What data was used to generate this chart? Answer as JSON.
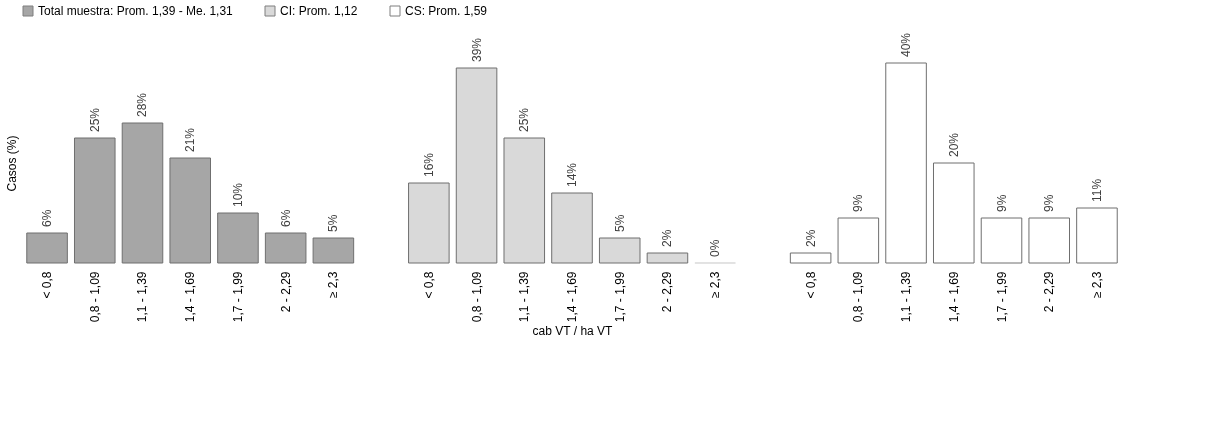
{
  "chart_data": {
    "type": "bar",
    "categories": [
      "< 0,8",
      "0,8 - 1,09",
      "1,1 - 1,39",
      "1,4 - 1,69",
      "1,7 - 1,99",
      "2 - 2,29",
      "≥ 2,3",
      null,
      "< 0,8",
      "0,8 - 1,09",
      "1,1 - 1,39",
      "1,4 - 1,69",
      "1,7 - 1,99",
      "2 - 2,29",
      "≥ 2,3",
      null,
      "< 0,8",
      "0,8 - 1,09",
      "1,1 - 1,39",
      "1,4 - 1,69",
      "1,7 - 1,99",
      "2 - 2,29",
      "≥ 2,3"
    ],
    "series": [
      {
        "name": "Total muestra: Prom. 1,39 - Me. 1,31",
        "color": "#a6a6a6",
        "values": [
          6,
          25,
          28,
          21,
          10,
          6,
          5,
          null,
          null,
          null,
          null,
          null,
          null,
          null,
          null,
          null,
          null,
          null,
          null,
          null,
          null,
          null,
          null
        ],
        "value_labels": [
          "6%",
          "25%",
          "28%",
          "21%",
          "10%",
          "6%",
          "5%",
          null,
          null,
          null,
          null,
          null,
          null,
          null,
          null,
          null,
          null,
          null,
          null,
          null,
          null,
          null,
          null
        ]
      },
      {
        "name": "CI: Prom. 1,12",
        "color": "#d9d9d9",
        "values": [
          null,
          null,
          null,
          null,
          null,
          null,
          null,
          null,
          16,
          39,
          25,
          14,
          5,
          2,
          0,
          null,
          null,
          null,
          null,
          null,
          null,
          null,
          null
        ],
        "value_labels": [
          null,
          null,
          null,
          null,
          null,
          null,
          null,
          null,
          "16%",
          "39%",
          "25%",
          "14%",
          "5%",
          "2%",
          "0%",
          null,
          null,
          null,
          null,
          null,
          null,
          null,
          null
        ]
      },
      {
        "name": "CS: Prom. 1,59",
        "color": "#ffffff",
        "values": [
          null,
          null,
          null,
          null,
          null,
          null,
          null,
          null,
          null,
          null,
          null,
          null,
          null,
          null,
          null,
          null,
          2,
          9,
          40,
          20,
          9,
          9,
          11
        ],
        "value_labels": [
          null,
          null,
          null,
          null,
          null,
          null,
          null,
          null,
          null,
          null,
          null,
          null,
          null,
          null,
          null,
          null,
          "2%",
          "9%",
          "40%",
          "20%",
          "9%",
          "9%",
          "11%"
        ]
      }
    ],
    "xlabel": "cab VT / ha VT",
    "ylabel": "Casos (%)",
    "legend": "top",
    "grid": false,
    "tick_labels": "x"
  }
}
